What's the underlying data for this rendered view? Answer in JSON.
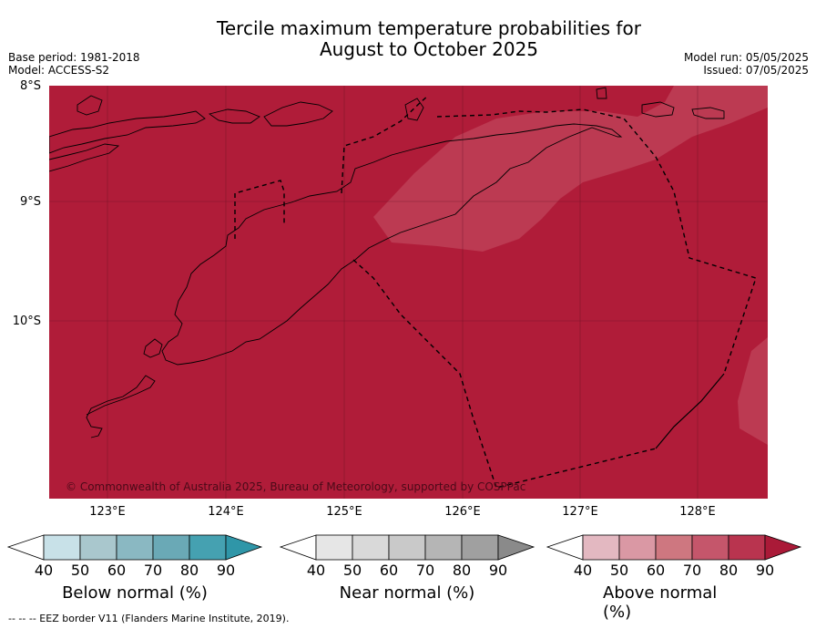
{
  "title": {
    "line1": "Tercile maximum temperature probabilities for",
    "line2": "August to October 2025"
  },
  "info": {
    "base_period": "Base period: 1981-2018",
    "model": "Model: ACCESS-S2",
    "model_run": "Model run: 05/05/2025",
    "issued": "Issued: 07/05/2025"
  },
  "map": {
    "lat_labels": [
      "8°S",
      "9°S",
      "10°S"
    ],
    "lon_labels": [
      "123°E",
      "124°E",
      "125°E",
      "126°E",
      "127°E",
      "128°E"
    ],
    "copyright": "© Commonwealth of Australia 2025, Bureau of Meteorology, supported by COSPPac",
    "colors": {
      "above_80_90": "#B01C39",
      "above_70_80": "#BC3A52",
      "land_outline": "#000000",
      "eez_border": "#000000"
    }
  },
  "colorbars": [
    {
      "label": "Below normal (%)",
      "ticks": [
        "40",
        "50",
        "60",
        "70",
        "80",
        "90"
      ],
      "colors": [
        "#FFFFFF",
        "#C8E1E8",
        "#A9C7CD",
        "#8AB8C2",
        "#6AA9B6",
        "#45A1B1",
        "#2F96A8"
      ]
    },
    {
      "label": "Near normal (%)",
      "ticks": [
        "40",
        "50",
        "60",
        "70",
        "80",
        "90"
      ],
      "colors": [
        "#FFFFFF",
        "#E6E6E6",
        "#D9D9D9",
        "#C9C9C9",
        "#B5B5B5",
        "#A0A0A0",
        "#8A8A8A"
      ]
    },
    {
      "label": "Above normal (%)",
      "ticks": [
        "40",
        "50",
        "60",
        "70",
        "80",
        "90"
      ],
      "colors": [
        "#FFFFFF",
        "#E3B8C1",
        "#DA98A4",
        "#CE7780",
        "#C5566B",
        "#B9344F",
        "#AA1A38"
      ]
    }
  ],
  "footer": "--  --  -- EEZ border V11 (Flanders Marine Institute, 2019)."
}
